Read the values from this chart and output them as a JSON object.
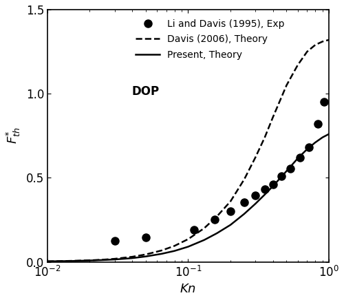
{
  "title": "",
  "xlabel": "$Kn$",
  "ylabel": "$F_{th}^{*}$",
  "xlim_log": [
    -2,
    0
  ],
  "ylim": [
    0.0,
    1.5
  ],
  "yticks": [
    0.0,
    0.5,
    1.0,
    1.5
  ],
  "annotation": "DOP",
  "legend_entries": [
    "Li and Davis (1995), Exp",
    "Davis (2006), Theory",
    "Present, Theory"
  ],
  "exp_x": [
    0.03,
    0.05,
    0.11,
    0.155,
    0.2,
    0.25,
    0.3,
    0.35,
    0.4,
    0.46,
    0.53,
    0.62,
    0.72,
    0.83,
    0.92
  ],
  "exp_y": [
    0.125,
    0.145,
    0.19,
    0.25,
    0.3,
    0.355,
    0.395,
    0.43,
    0.46,
    0.51,
    0.555,
    0.62,
    0.68,
    0.82,
    0.95
  ],
  "present_kn": [
    0.01,
    0.012,
    0.015,
    0.02,
    0.025,
    0.03,
    0.04,
    0.05,
    0.065,
    0.08,
    0.1,
    0.13,
    0.16,
    0.2,
    0.25,
    0.3,
    0.35,
    0.4,
    0.5,
    0.6,
    0.7,
    0.8,
    0.9,
    1.0
  ],
  "present_y": [
    0.003,
    0.004,
    0.005,
    0.008,
    0.011,
    0.014,
    0.022,
    0.032,
    0.048,
    0.065,
    0.09,
    0.13,
    0.17,
    0.22,
    0.285,
    0.345,
    0.4,
    0.45,
    0.54,
    0.615,
    0.67,
    0.71,
    0.74,
    0.76
  ],
  "davis_kn": [
    0.01,
    0.012,
    0.015,
    0.02,
    0.025,
    0.03,
    0.04,
    0.05,
    0.065,
    0.08,
    0.1,
    0.13,
    0.16,
    0.2,
    0.25,
    0.3,
    0.35,
    0.4,
    0.5,
    0.6,
    0.7,
    0.8,
    0.9,
    1.0
  ],
  "davis_y": [
    0.003,
    0.004,
    0.006,
    0.009,
    0.013,
    0.018,
    0.03,
    0.044,
    0.068,
    0.095,
    0.135,
    0.2,
    0.27,
    0.36,
    0.49,
    0.62,
    0.74,
    0.86,
    1.05,
    1.17,
    1.25,
    1.29,
    1.31,
    1.32
  ],
  "line_color": "#000000",
  "marker_color": "#000000",
  "bg_color": "#ffffff",
  "figsize": [
    5.0,
    4.36
  ],
  "dpi": 100
}
